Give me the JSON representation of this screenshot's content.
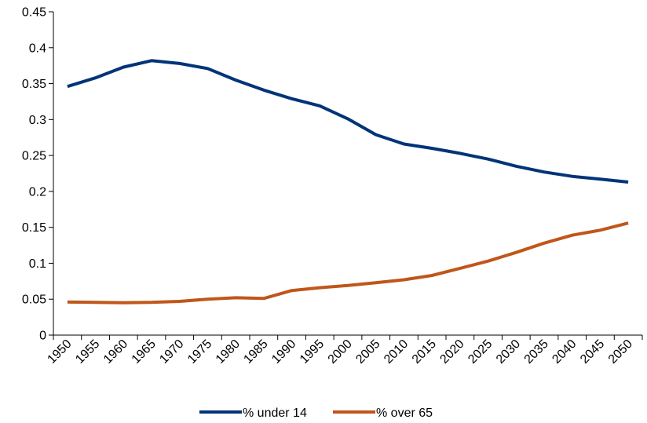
{
  "chart_data": {
    "type": "line",
    "title": "",
    "xlabel": "",
    "ylabel": "",
    "categories": [
      "1950",
      "1955",
      "1960",
      "1965",
      "1970",
      "1975",
      "1980",
      "1985",
      "1990",
      "1995",
      "2000",
      "2005",
      "2010",
      "2015",
      "2020",
      "2025",
      "2030",
      "2035",
      "2040",
      "2045",
      "2050"
    ],
    "y_ticks": [
      "0",
      "0.05",
      "0.1",
      "0.15",
      "0.2",
      "0.25",
      "0.3",
      "0.35",
      "0.4",
      "0.45"
    ],
    "ylim": [
      0,
      0.45
    ],
    "grid": false,
    "legend_position": "bottom",
    "series": [
      {
        "name": "% under 14",
        "color": "#003478",
        "values": [
          0.346,
          0.358,
          0.373,
          0.382,
          0.378,
          0.371,
          0.355,
          0.341,
          0.329,
          0.319,
          0.301,
          0.279,
          0.266,
          0.26,
          0.253,
          0.245,
          0.235,
          0.227,
          0.221,
          0.217,
          0.213
        ]
      },
      {
        "name": "% over 65",
        "color": "#c0561a",
        "values": [
          0.046,
          0.0455,
          0.045,
          0.0455,
          0.047,
          0.05,
          0.052,
          0.051,
          0.062,
          0.066,
          0.069,
          0.073,
          0.077,
          0.083,
          0.093,
          0.103,
          0.115,
          0.128,
          0.139,
          0.146,
          0.156
        ]
      }
    ]
  }
}
